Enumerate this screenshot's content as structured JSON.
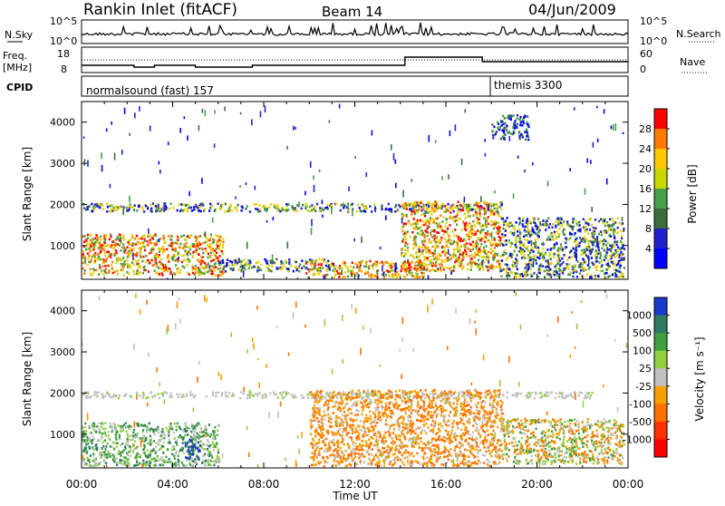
{
  "header": {
    "station": "Rankin Inlet (fitACF)",
    "beam": "Beam 14",
    "date": "04/Jun/2009"
  },
  "noise_panel": {
    "left_label": "N.Sky",
    "right_label": "N.Search",
    "ticks_left": [
      "10^5",
      "10^0"
    ],
    "ticks_right": [
      "10^5",
      "10^0"
    ]
  },
  "freq_panel": {
    "left_label_1": "Freq.",
    "left_label_2": "[MHz]",
    "right_label": "Nave",
    "ticks_left": [
      "18",
      "8"
    ],
    "ticks_right": [
      "60",
      "0"
    ]
  },
  "cpid_panel": {
    "label": "CPID",
    "mode_1": "normalsound (fast) 157",
    "mode_2": "themis 3300"
  },
  "time_axis": {
    "label": "Time UT",
    "ticks": [
      "00:00",
      "04:00",
      "08:00",
      "12:00",
      "16:00",
      "20:00",
      "00:00"
    ]
  },
  "chart_data": [
    {
      "type": "heatmap",
      "name": "power",
      "ylabel": "Slant Range [km]",
      "xlabel": "Time UT",
      "xlim": [
        0,
        24
      ],
      "ylim": [
        180,
        4500
      ],
      "yticks": [
        "1000",
        "2000",
        "3000",
        "4000"
      ],
      "colorbar": {
        "label": "Power [dB]",
        "ticks": [
          "28",
          "24",
          "20",
          "16",
          "12",
          "8",
          "4"
        ],
        "colors": [
          "#ff0000",
          "#ff7a00",
          "#ffc800",
          "#c8d800",
          "#46a046",
          "#3a6f3a",
          "#2222cc",
          "#0000ff"
        ]
      },
      "regions": [
        {
          "t": [
            0.0,
            18.5
          ],
          "r": [
            1850,
            2050
          ],
          "level": "mid"
        },
        {
          "t": [
            0.0,
            6.2
          ],
          "r": [
            300,
            1300
          ],
          "level": "high"
        },
        {
          "t": [
            6.0,
            11.0
          ],
          "r": [
            400,
            700
          ],
          "level": "mid"
        },
        {
          "t": [
            9.8,
            15.0
          ],
          "r": [
            250,
            650
          ],
          "level": "high"
        },
        {
          "t": [
            14.0,
            18.4
          ],
          "r": [
            400,
            2100
          ],
          "level": "high"
        },
        {
          "t": [
            18.4,
            23.8
          ],
          "r": [
            250,
            1700
          ],
          "level": "mid"
        },
        {
          "t": [
            18.0,
            19.6
          ],
          "r": [
            3600,
            4200
          ],
          "level": "low"
        }
      ]
    },
    {
      "type": "heatmap",
      "name": "velocity",
      "ylabel": "Slant Range [km]",
      "xlabel": "Time UT",
      "xlim": [
        0,
        24
      ],
      "ylim": [
        180,
        4500
      ],
      "yticks": [
        "1000",
        "2000",
        "3000",
        "4000"
      ],
      "colorbar": {
        "label": "Velocity [m s⁻¹]",
        "ticks": [
          "1000",
          "500",
          "100",
          "25",
          "-25",
          "-100",
          "-500",
          "-1000"
        ],
        "colors": [
          "#1a3cc8",
          "#2e7a60",
          "#3fa03f",
          "#90d040",
          "#c0c0c0",
          "#f5a000",
          "#ff7000",
          "#ff3000",
          "#ff0000"
        ]
      },
      "regions": [
        {
          "t": [
            0.0,
            22.5
          ],
          "r": [
            1900,
            2050
          ],
          "level": "zero"
        },
        {
          "t": [
            0.0,
            6.0
          ],
          "r": [
            250,
            1300
          ],
          "level": "pos"
        },
        {
          "t": [
            4.5,
            5.2
          ],
          "r": [
            400,
            900
          ],
          "level": "strongpos"
        },
        {
          "t": [
            10.0,
            18.5
          ],
          "r": [
            250,
            2100
          ],
          "level": "neg"
        },
        {
          "t": [
            18.5,
            23.8
          ],
          "r": [
            300,
            1400
          ],
          "level": "mixed"
        }
      ]
    }
  ]
}
